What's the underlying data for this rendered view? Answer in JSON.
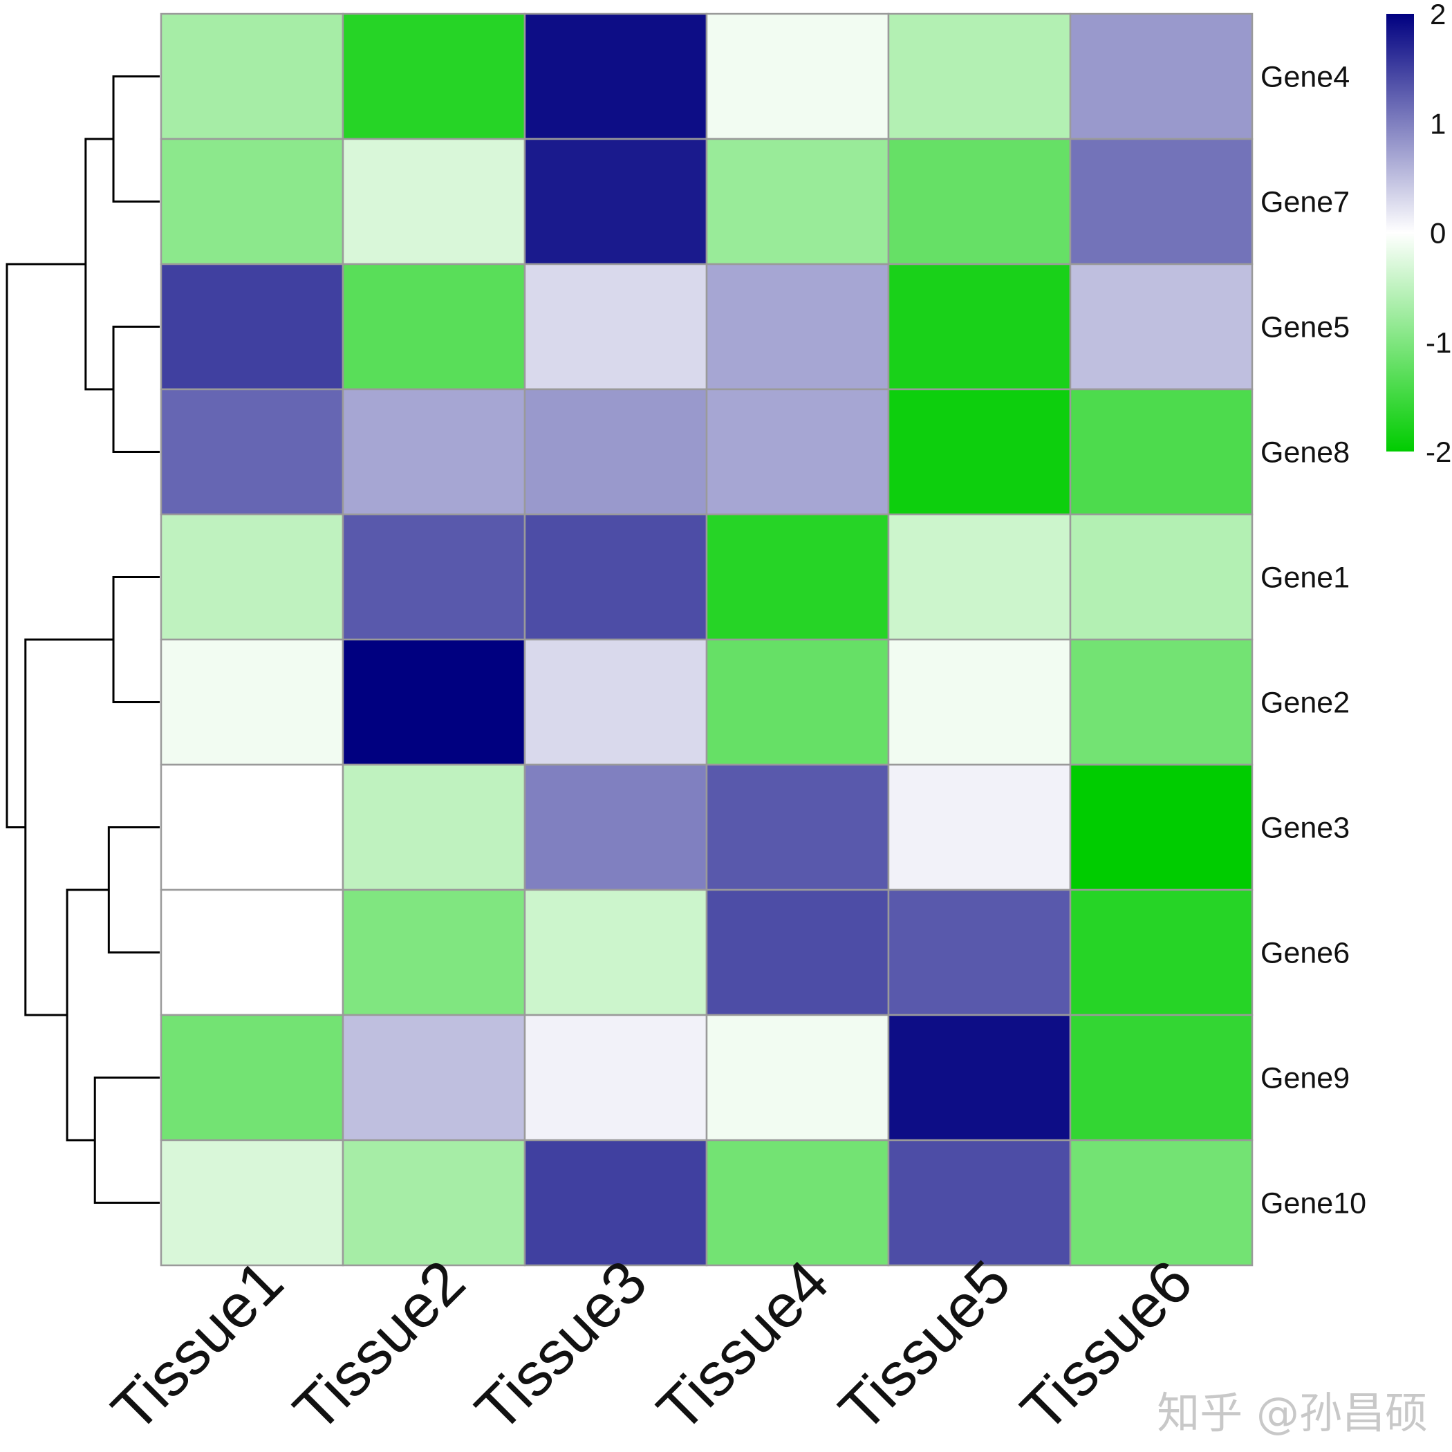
{
  "chart_data": {
    "type": "heatmap",
    "title": "",
    "columns": [
      "Tissue1",
      "Tissue2",
      "Tissue3",
      "Tissue4",
      "Tissue5",
      "Tissue6"
    ],
    "rows": [
      "Gene4",
      "Gene7",
      "Gene5",
      "Gene8",
      "Gene1",
      "Gene2",
      "Gene3",
      "Gene6",
      "Gene9",
      "Gene10"
    ],
    "values": [
      [
        -0.7,
        -1.7,
        1.9,
        -0.1,
        -0.6,
        0.8
      ],
      [
        -0.9,
        -0.3,
        1.8,
        -0.8,
        -1.2,
        1.1
      ],
      [
        1.5,
        -1.3,
        0.3,
        0.7,
        -1.8,
        0.5
      ],
      [
        1.2,
        0.7,
        0.8,
        0.7,
        -1.9,
        -1.4
      ],
      [
        -0.5,
        1.3,
        1.4,
        -1.7,
        -0.4,
        -0.6
      ],
      [
        -0.1,
        2.1,
        0.3,
        -1.2,
        -0.1,
        -1.1
      ],
      [
        0.0,
        -0.5,
        1.0,
        1.3,
        0.1,
        -2.0
      ],
      [
        0.0,
        -1.0,
        -0.4,
        1.4,
        1.3,
        -1.7
      ],
      [
        -1.1,
        0.5,
        0.1,
        -0.1,
        1.9,
        -1.6
      ],
      [
        -0.3,
        -0.7,
        1.5,
        -1.1,
        1.4,
        -1.1
      ]
    ],
    "color_scale": {
      "min": -2,
      "max": 2,
      "low_color": "#00cc00",
      "mid_color": "#ffffff",
      "high_color": "#000080",
      "ticks": [
        "2",
        "1",
        "0",
        "-1",
        "-2"
      ]
    },
    "row_dendrogram": {
      "merges": [
        [
          0,
          1,
          1.0
        ],
        [
          2,
          3,
          1.0
        ],
        [
          10,
          11,
          1.6
        ],
        [
          4,
          5,
          1.0
        ],
        [
          6,
          7,
          1.1
        ],
        [
          8,
          9,
          1.4
        ],
        [
          14,
          15,
          2.0
        ],
        [
          13,
          16,
          2.9
        ],
        [
          12,
          17,
          3.3
        ]
      ]
    },
    "watermark": "知乎 @孙昌硕"
  }
}
